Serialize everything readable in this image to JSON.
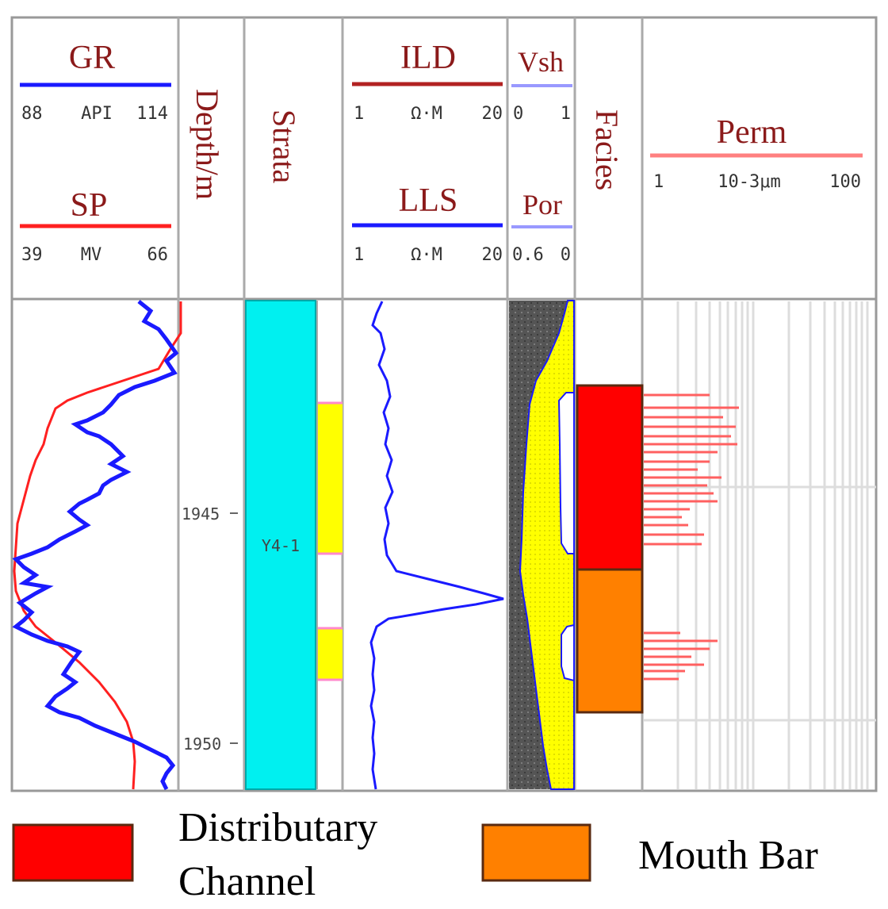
{
  "tracks": {
    "gr": {
      "title": "GR",
      "min": "88",
      "unit": "API",
      "max": "114"
    },
    "sp": {
      "title": "SP",
      "min": "39",
      "unit": "MV",
      "max": "66"
    },
    "depth": {
      "title": "Depth/m",
      "ticks": [
        "1945",
        "1950"
      ]
    },
    "strata": {
      "title": "Strata",
      "zone": "Y4-1"
    },
    "ild": {
      "title": "ILD",
      "min": "1",
      "unit": "Ω·M",
      "max": "20"
    },
    "lls": {
      "title": "LLS",
      "min": "1",
      "unit": "Ω·M",
      "max": "20"
    },
    "vsh": {
      "title": "Vsh",
      "min": "0",
      "max": "1"
    },
    "por": {
      "title": "Por",
      "min": "0.6",
      "max": "0"
    },
    "facies": {
      "title": "Facies"
    },
    "perm": {
      "title": "Perm",
      "min": "1",
      "unit": "10-3μm",
      "max": "100"
    }
  },
  "legend": {
    "items": [
      {
        "label_line1": "Distributary",
        "label_line2": "Channel",
        "color": "#ff0000"
      },
      {
        "label": "Mouth Bar",
        "color": "#ff8000"
      }
    ]
  },
  "colors": {
    "gr_curve": "#1a1aff",
    "sp_curve": "#ff2020",
    "strata_fill": "#00f0f0",
    "sand_fill": "#ffff00",
    "shale_fill": "#555555",
    "header_text": "#8b1a1a",
    "perm_bar": "#ff6060"
  }
}
